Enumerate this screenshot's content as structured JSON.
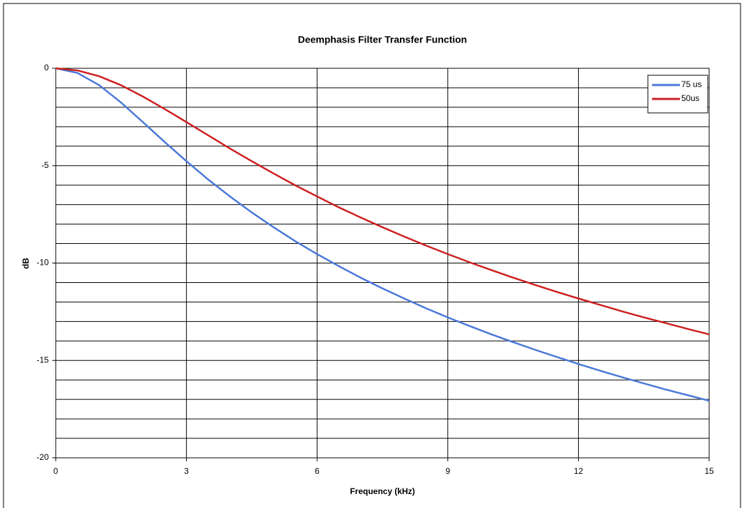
{
  "chart_data": {
    "type": "line",
    "title": "Deemphasis Filter Transfer Function",
    "xlabel": "Frequency (kHz)",
    "ylabel": "dB",
    "x": [
      0,
      0.5,
      1,
      1.5,
      2,
      2.5,
      3,
      3.5,
      4,
      4.5,
      5,
      5.5,
      6,
      6.5,
      7,
      7.5,
      8,
      8.5,
      9,
      9.5,
      10,
      10.5,
      11,
      11.5,
      12,
      12.5,
      13,
      13.5,
      14,
      14.5,
      15
    ],
    "series": [
      {
        "name": "75 us",
        "color": "#4a78d8",
        "values": [
          0,
          -0.24,
          -0.87,
          -1.76,
          -2.76,
          -3.78,
          -4.77,
          -5.71,
          -6.58,
          -7.4,
          -8.16,
          -8.88,
          -9.54,
          -10.16,
          -10.75,
          -11.3,
          -11.82,
          -12.32,
          -12.79,
          -13.23,
          -13.66,
          -14.06,
          -14.45,
          -14.82,
          -15.18,
          -15.53,
          -15.86,
          -16.18,
          -16.49,
          -16.78,
          -17.07
        ]
      },
      {
        "name": "50us",
        "color": "#cc1f1f",
        "values": [
          0,
          -0.11,
          -0.41,
          -0.87,
          -1.45,
          -2.09,
          -2.76,
          -3.44,
          -4.12,
          -4.77,
          -5.4,
          -6.01,
          -6.58,
          -7.14,
          -7.66,
          -8.16,
          -8.64,
          -9.1,
          -9.54,
          -9.96,
          -10.36,
          -10.75,
          -11.12,
          -11.48,
          -11.82,
          -12.15,
          -12.48,
          -12.79,
          -13.08,
          -13.38,
          -13.66
        ]
      }
    ],
    "xlim": [
      0,
      15
    ],
    "xticks": [
      0,
      3,
      6,
      9,
      12,
      15
    ],
    "ylim": [
      -20,
      0
    ],
    "yticks": [
      0,
      -5,
      -10,
      -15,
      -20
    ],
    "y_minor_per_major": 5,
    "grid": true,
    "legend": "upper right"
  }
}
